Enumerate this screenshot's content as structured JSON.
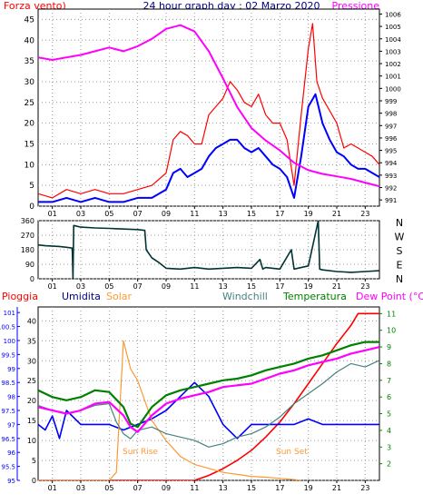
{
  "header": {
    "left": "Forza vento)",
    "center": "24 hour graph day : 02 Marzo 2020",
    "right": "Pressione"
  },
  "bottom_legend": {
    "pioggia": "Pioggia",
    "umidita": "Umidita",
    "solar": "Solar",
    "windchill": "Windchill",
    "temperatura": "Temperatura",
    "dew": "Dew Point (°C)"
  },
  "colors": {
    "wind_gust": "#ff0000",
    "wind_avg": "#0000ff",
    "pressure": "#ff00ff",
    "direction": "#003333",
    "rain": "#ff0000",
    "humidity": "#0000ff",
    "solar": "#ff9933",
    "windchill": "#4a8080",
    "temperature": "#008000",
    "dewpoint": "#ff00ff",
    "title_blue": "#000080",
    "grid": "#999999"
  },
  "x_ticks": [
    "01",
    "03",
    "05",
    "07",
    "09",
    "11",
    "13",
    "15",
    "17",
    "19",
    "21",
    "23"
  ],
  "sun": {
    "rise": "Sun Rise",
    "set": "Sun Set"
  },
  "chart_data": [
    {
      "type": "line",
      "title": "24 hour graph day : 02 Marzo 2020",
      "ylabel_left": "Forza vento)",
      "ylabel_right": "Pressione",
      "y_left": {
        "min": 0,
        "max": 47.5,
        "ticks": [
          "0",
          "5",
          "10",
          "15",
          "20",
          "25",
          "30",
          "35",
          "40",
          "45"
        ]
      },
      "y_right": {
        "min": 990.5,
        "max": 1006.4,
        "ticks": [
          "991",
          "992",
          "993",
          "994",
          "995",
          "996",
          "997",
          "998",
          "999",
          "1000",
          "1001",
          "1002",
          "1003",
          "1004",
          "1005",
          "1006"
        ]
      },
      "series": [
        {
          "axis": "left",
          "x": [
            0,
            1,
            2,
            3,
            4,
            5,
            6,
            7,
            8,
            9,
            9.5,
            10,
            10.5,
            11,
            11.5,
            12,
            12.5,
            13,
            13.5,
            14,
            14.5,
            15,
            15.5,
            16,
            16.5,
            17,
            17.5,
            18,
            18.5,
            19,
            19.3,
            19.6,
            20,
            20.5,
            21,
            21.5,
            22,
            22.5,
            23,
            23.5,
            24
          ],
          "values": [
            3,
            2,
            4,
            3,
            4,
            3,
            3,
            4,
            5,
            8,
            16,
            18,
            17,
            15,
            15,
            22,
            24,
            26,
            30,
            28,
            25,
            24,
            27,
            22,
            20,
            20,
            16,
            5,
            22,
            38,
            44,
            30,
            26,
            23,
            20,
            14,
            15,
            14,
            13,
            12,
            10
          ]
        },
        {
          "axis": "left",
          "x": [
            0,
            1,
            2,
            3,
            4,
            5,
            6,
            7,
            8,
            9,
            9.5,
            10,
            10.5,
            11,
            11.5,
            12,
            12.5,
            13,
            13.5,
            14,
            14.5,
            15,
            15.5,
            16,
            16.5,
            17,
            17.5,
            18,
            18.5,
            19,
            19.5,
            20,
            20.5,
            21,
            21.5,
            22,
            22.5,
            23,
            23.5,
            24
          ],
          "values": [
            1,
            1,
            2,
            1,
            2,
            1,
            1,
            2,
            2,
            4,
            8,
            9,
            7,
            8,
            9,
            12,
            14,
            15,
            16,
            16,
            14,
            13,
            14,
            12,
            10,
            9,
            7,
            2,
            12,
            24,
            27,
            20,
            16,
            13,
            12,
            10,
            9,
            9,
            8,
            7
          ]
        },
        {
          "axis": "right",
          "x": [
            0,
            1,
            2,
            3,
            4,
            5,
            6,
            7,
            8,
            9,
            10,
            11,
            12,
            13,
            14,
            15,
            16,
            17,
            18,
            19,
            20,
            21,
            22,
            23,
            24
          ],
          "values": [
            1002.5,
            1002.3,
            1002.5,
            1002.7,
            1003.0,
            1003.3,
            1003.0,
            1003.4,
            1004.0,
            1004.8,
            1005.1,
            1004.6,
            1003.0,
            1000.8,
            998.5,
            996.8,
            995.8,
            995.0,
            994.0,
            993.4,
            993.1,
            992.9,
            992.7,
            992.4,
            992.1
          ]
        }
      ]
    },
    {
      "type": "line",
      "ylabel_right": "N W S E N",
      "compass": [
        "N",
        "W",
        "S",
        "E",
        "N"
      ],
      "y_left": {
        "min": 0,
        "max": 360,
        "ticks": [
          "0",
          "90",
          "180",
          "270",
          "360"
        ]
      },
      "series": [
        {
          "x": [
            0,
            0.5,
            1.5,
            2,
            2.4,
            2.45,
            2.5,
            3,
            4,
            5,
            6,
            7,
            7.5,
            7.6,
            8,
            8.5,
            9,
            10,
            11,
            12,
            13,
            14,
            15,
            15.6,
            15.8,
            16,
            17,
            17.8,
            18,
            19,
            19.7,
            19.8,
            20,
            21,
            22,
            23,
            24
          ],
          "values": [
            210,
            205,
            200,
            195,
            190,
            0,
            330,
            320,
            315,
            312,
            308,
            305,
            300,
            180,
            130,
            100,
            65,
            60,
            70,
            60,
            65,
            70,
            65,
            120,
            60,
            70,
            60,
            180,
            60,
            80,
            360,
            60,
            55,
            45,
            40,
            45,
            50
          ]
        }
      ]
    },
    {
      "type": "line",
      "ylabel_left": "Umidita",
      "ylabel_right": "Dew Point (°C)",
      "y_left": {
        "min": 95,
        "max": 101.2,
        "ticks": [
          "95",
          "95.5",
          "96",
          "96.5",
          "97",
          "97.5",
          "98",
          "98.5",
          "99",
          "99.5",
          "100",
          "100.5",
          "101"
        ]
      },
      "y_outer": {
        "min": 0,
        "max": 43.5,
        "ticks": [
          "0",
          "5",
          "10",
          "15",
          "20",
          "25",
          "30",
          "35",
          "40"
        ]
      },
      "y_right": {
        "min": 1,
        "max": 11.4,
        "ticks": [
          "2",
          "3",
          "4",
          "5",
          "6",
          "7",
          "8",
          "9",
          "10",
          "11"
        ]
      },
      "series": [
        {
          "axis": "right",
          "x": [
            0,
            11,
            12,
            13,
            14,
            15,
            16,
            17,
            18,
            19,
            20,
            21,
            22,
            22.5,
            23,
            24
          ],
          "values": [
            1,
            1,
            1.3,
            1.7,
            2.2,
            2.8,
            3.6,
            4.5,
            5.6,
            6.8,
            8.0,
            9.2,
            10.3,
            11.0,
            11.0,
            11.0
          ]
        },
        {
          "axis": "left",
          "x": [
            0,
            0.5,
            1,
            1.5,
            2,
            3,
            4,
            5,
            6,
            7,
            8,
            9,
            10,
            11,
            12,
            13,
            14,
            15,
            16,
            17,
            18,
            19,
            20,
            21,
            22,
            23,
            24
          ],
          "values": [
            97,
            96.8,
            97.3,
            96.5,
            97.5,
            97,
            97,
            97,
            96.8,
            97,
            97.2,
            97.5,
            98,
            98.5,
            98,
            97,
            96.5,
            97,
            97,
            97,
            97,
            97.2,
            97,
            97,
            97,
            97,
            97
          ]
        },
        {
          "axis": "outer",
          "x": [
            0,
            4,
            5,
            5.5,
            6,
            6.5,
            7,
            8,
            9,
            10,
            11,
            12,
            13,
            14,
            15,
            16,
            17,
            18,
            18.5
          ],
          "values": [
            0,
            0,
            0,
            2,
            35,
            28,
            25,
            15,
            10,
            6,
            4,
            3,
            2,
            1.5,
            1,
            0.8,
            0.5,
            0.2,
            0
          ]
        },
        {
          "axis": "right",
          "x": [
            0,
            1,
            2,
            3,
            4,
            5,
            5.5,
            6,
            6.5,
            7,
            8,
            9,
            10,
            11,
            12,
            13,
            14,
            15,
            16,
            17,
            18,
            19,
            20,
            21,
            22,
            23,
            24
          ],
          "values": [
            5.5,
            5.2,
            5.0,
            5.2,
            5.5,
            5.6,
            4.5,
            3.8,
            3.5,
            4.0,
            4.2,
            3.8,
            3.6,
            3.4,
            3.0,
            3.2,
            3.6,
            3.8,
            4.2,
            4.8,
            5.6,
            6.2,
            6.8,
            7.5,
            8.0,
            7.8,
            8.2
          ]
        },
        {
          "axis": "right",
          "x": [
            0,
            1,
            2,
            3,
            4,
            5,
            6,
            6.5,
            7,
            8,
            9,
            10,
            11,
            12,
            13,
            14,
            15,
            16,
            17,
            18,
            19,
            20,
            21,
            22,
            23,
            24
          ],
          "values": [
            6.4,
            6.0,
            5.8,
            6.0,
            6.4,
            6.3,
            5.4,
            4.4,
            4.2,
            5.4,
            6.1,
            6.4,
            6.6,
            6.8,
            7.0,
            7.1,
            7.3,
            7.6,
            7.8,
            8.0,
            8.3,
            8.5,
            8.8,
            9.1,
            9.3,
            9.3
          ]
        },
        {
          "axis": "right",
          "x": [
            0,
            1,
            2,
            3,
            4,
            5,
            6,
            6.5,
            7,
            8,
            9,
            10,
            11,
            12,
            13,
            14,
            15,
            16,
            17,
            18,
            19,
            20,
            21,
            22,
            23,
            24
          ],
          "values": [
            5.4,
            5.2,
            5.0,
            5.2,
            5.6,
            5.7,
            4.9,
            4.2,
            3.9,
            4.9,
            5.6,
            5.9,
            6.1,
            6.3,
            6.6,
            6.7,
            6.8,
            7.1,
            7.4,
            7.6,
            7.9,
            8.1,
            8.3,
            8.6,
            8.8,
            9.0
          ]
        }
      ]
    }
  ]
}
